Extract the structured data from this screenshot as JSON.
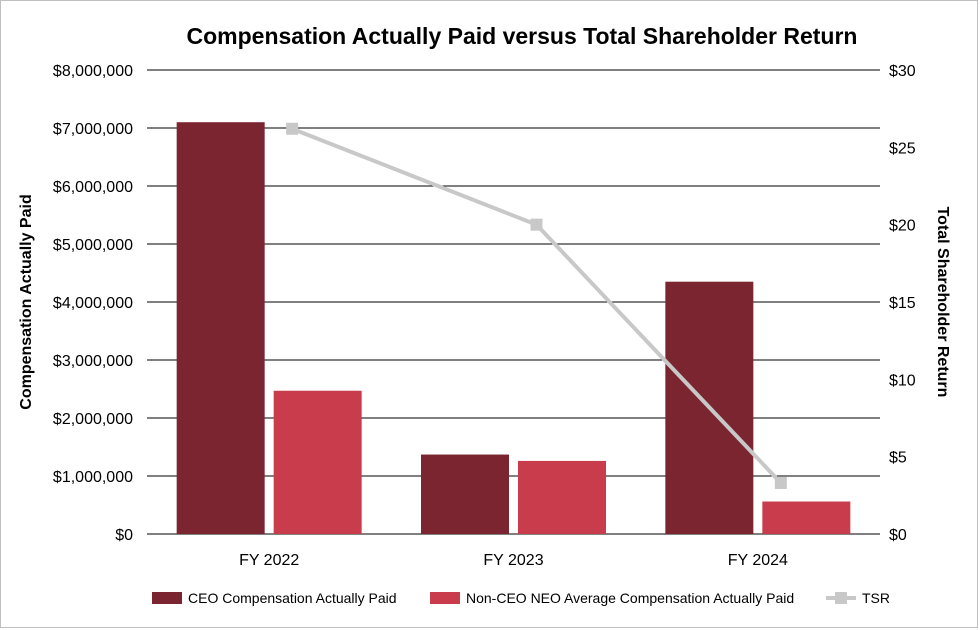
{
  "chart_data": {
    "type": "bar",
    "title": "Compensation Actually Paid versus Total Shareholder Return",
    "categories": [
      "FY 2022",
      "FY 2023",
      "FY 2024"
    ],
    "series": [
      {
        "name": "CEO Compensation Actually Paid",
        "kind": "bar",
        "axis": "left",
        "color": "#7b2530",
        "values": [
          7100000,
          1370000,
          4350000
        ]
      },
      {
        "name": "Non-CEO NEO Average Compensation Actually Paid",
        "kind": "bar",
        "axis": "left",
        "color": "#c83c4c",
        "values": [
          2470000,
          1260000,
          560000
        ]
      },
      {
        "name": "TSR",
        "kind": "line",
        "axis": "right",
        "color": "#c8c8c8",
        "marker": "square",
        "values": [
          26.2,
          20.0,
          3.3
        ]
      }
    ],
    "ylabel": "Compensation Actually Paid",
    "y2label": "Total Shareholder Return",
    "ylim": [
      0,
      8000000
    ],
    "y2lim": [
      0,
      30
    ],
    "yticks": [
      "$0",
      "$1,000,000",
      "$2,000,000",
      "$3,000,000",
      "$4,000,000",
      "$5,000,000",
      "$6,000,000",
      "$7,000,000",
      "$8,000,000"
    ],
    "y2ticks": [
      "$0",
      "$5",
      "$10",
      "$15",
      "$20",
      "$25",
      "$30"
    ],
    "grid": true,
    "legend_position": "bottom"
  }
}
